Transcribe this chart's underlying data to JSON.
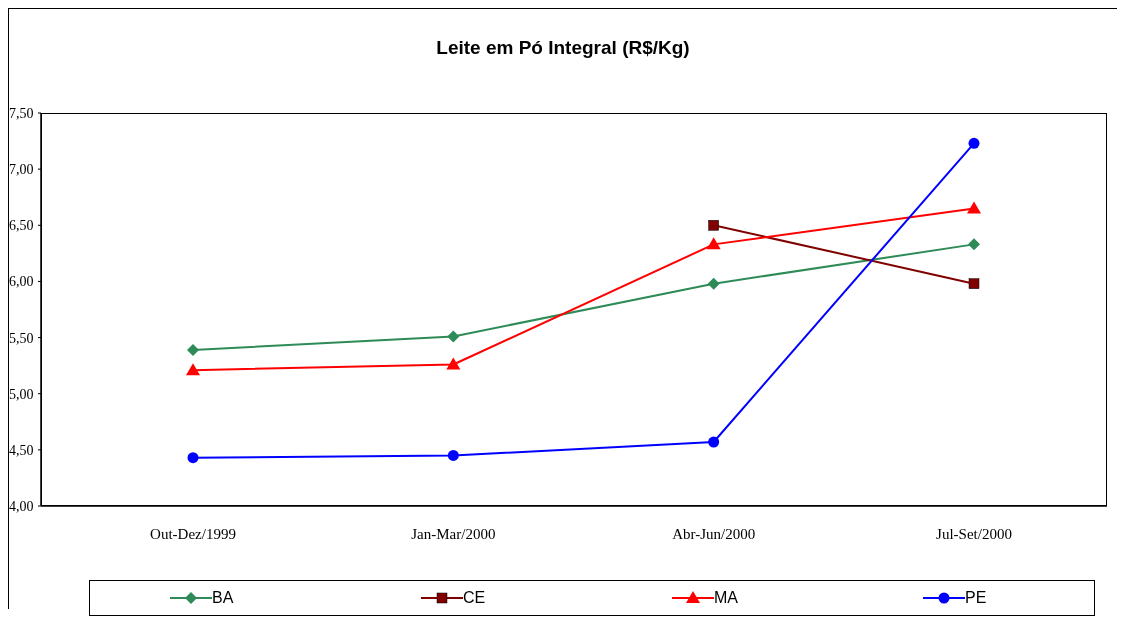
{
  "chart_data": {
    "type": "line",
    "title": "Leite em Pó Integral (R$/Kg)",
    "categories": [
      "Out-Dez/1999",
      "Jan-Mar/2000",
      "Abr-Jun/2000",
      "Jul-Set/2000"
    ],
    "series": [
      {
        "name": "BA",
        "color": "#2e8b57",
        "marker": "diamond",
        "values": [
          5.39,
          5.51,
          5.98,
          6.33
        ]
      },
      {
        "name": "CE",
        "color": "#800000",
        "marker": "square",
        "values": [
          null,
          null,
          6.5,
          5.98
        ]
      },
      {
        "name": "MA",
        "color": "#ff0000",
        "marker": "triangle",
        "values": [
          5.21,
          5.26,
          6.33,
          6.65
        ]
      },
      {
        "name": "PE",
        "color": "#0000ff",
        "marker": "circle",
        "values": [
          4.43,
          4.45,
          4.57,
          7.23
        ]
      }
    ],
    "ylim": [
      4,
      7.5
    ],
    "yticks": [
      {
        "value": 4,
        "label": "4,00"
      },
      {
        "value": 4.5,
        "label": "4,50"
      },
      {
        "value": 5,
        "label": "5,00"
      },
      {
        "value": 5.5,
        "label": "5,50"
      },
      {
        "value": 6,
        "label": "6,00"
      },
      {
        "value": 6.5,
        "label": "6,50"
      },
      {
        "value": 7,
        "label": "7,00"
      },
      {
        "value": 7.5,
        "label": "7,50"
      }
    ],
    "grid": false,
    "legend": "bottom",
    "line_style": "solid"
  }
}
